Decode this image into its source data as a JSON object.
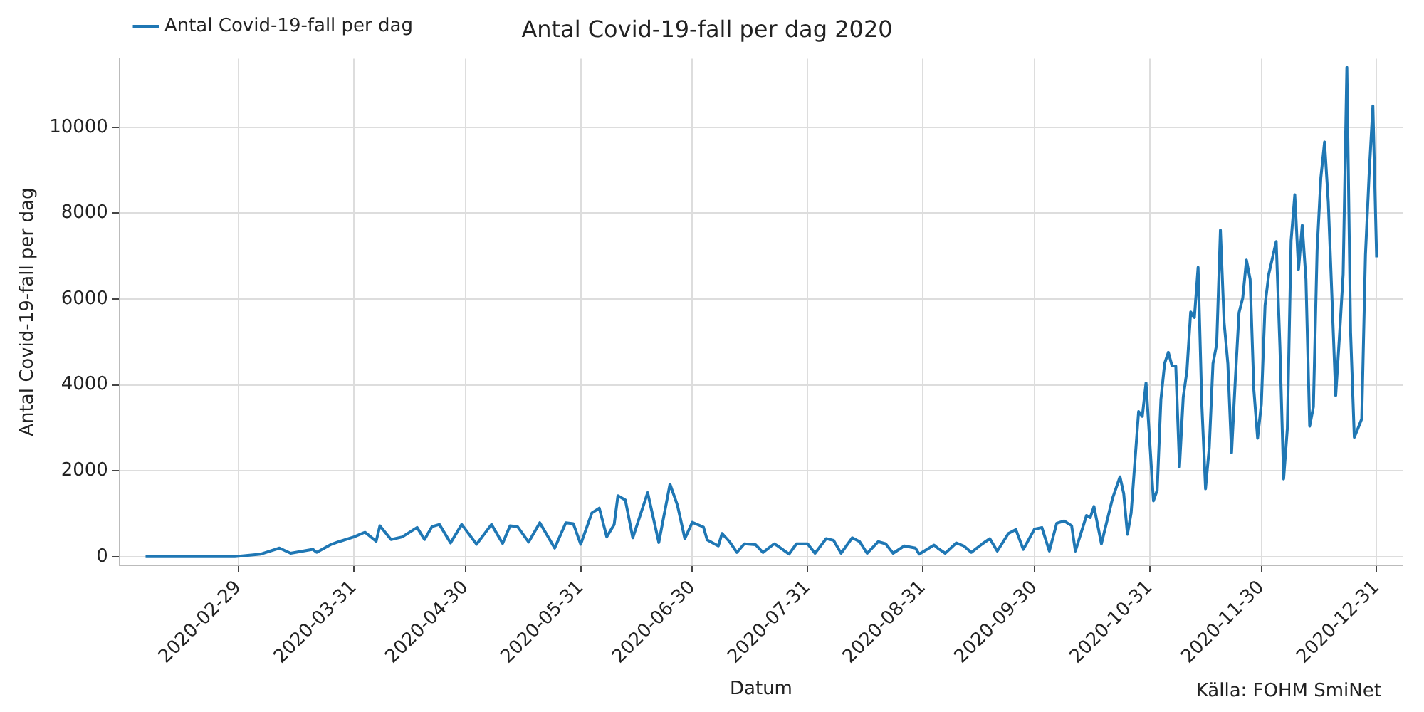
{
  "chart_data": {
    "type": "line",
    "title": "Antal Covid-19-fall per dag 2020",
    "xlabel": "Datum",
    "ylabel": "Antal Covid-19-fall per dag",
    "annotations": [
      "Källa: FOHM SmiNet"
    ],
    "x": [
      "2020-02-04",
      "2020-02-28",
      "2020-03-06",
      "2020-03-11",
      "2020-03-14",
      "2020-03-20",
      "2020-03-21",
      "2020-03-25",
      "2020-03-27",
      "2020-03-31",
      "2020-04-03",
      "2020-04-06",
      "2020-04-07",
      "2020-04-10",
      "2020-04-13",
      "2020-04-17",
      "2020-04-19",
      "2020-04-21",
      "2020-04-23",
      "2020-04-26",
      "2020-04-29",
      "2020-05-03",
      "2020-05-07",
      "2020-05-10",
      "2020-05-12",
      "2020-05-14",
      "2020-05-17",
      "2020-05-20",
      "2020-05-24",
      "2020-05-27",
      "2020-05-29",
      "2020-05-31",
      "2020-06-03",
      "2020-06-05",
      "2020-06-07",
      "2020-06-09",
      "2020-06-10",
      "2020-06-12",
      "2020-06-14",
      "2020-06-18",
      "2020-06-21",
      "2020-06-24",
      "2020-06-26",
      "2020-06-28",
      "2020-06-30",
      "2020-07-03",
      "2020-07-04",
      "2020-07-07",
      "2020-07-08",
      "2020-07-10",
      "2020-07-12",
      "2020-07-14",
      "2020-07-17",
      "2020-07-19",
      "2020-07-22",
      "2020-07-23",
      "2020-07-26",
      "2020-07-28",
      "2020-07-31",
      "2020-08-02",
      "2020-08-05",
      "2020-08-07",
      "2020-08-09",
      "2020-08-12",
      "2020-08-14",
      "2020-08-16",
      "2020-08-19",
      "2020-08-21",
      "2020-08-23",
      "2020-08-26",
      "2020-08-29",
      "2020-08-30",
      "2020-09-03",
      "2020-09-04",
      "2020-09-06",
      "2020-09-09",
      "2020-09-11",
      "2020-09-13",
      "2020-09-16",
      "2020-09-18",
      "2020-09-20",
      "2020-09-23",
      "2020-09-25",
      "2020-09-27",
      "2020-09-30",
      "2020-10-02",
      "2020-10-04",
      "2020-10-06",
      "2020-10-08",
      "2020-10-10",
      "2020-10-11",
      "2020-10-14",
      "2020-10-15",
      "2020-10-16",
      "2020-10-18",
      "2020-10-21",
      "2020-10-23",
      "2020-10-24",
      "2020-10-25",
      "2020-10-26",
      "2020-10-28",
      "2020-10-29",
      "2020-10-30",
      "2020-11-01",
      "2020-11-02",
      "2020-11-03",
      "2020-11-04",
      "2020-11-05",
      "2020-11-06",
      "2020-11-07",
      "2020-11-08",
      "2020-11-09",
      "2020-11-10",
      "2020-11-11",
      "2020-11-12",
      "2020-11-13",
      "2020-11-14",
      "2020-11-15",
      "2020-11-16",
      "2020-11-17",
      "2020-11-18",
      "2020-11-19",
      "2020-11-20",
      "2020-11-21",
      "2020-11-22",
      "2020-11-23",
      "2020-11-24",
      "2020-11-25",
      "2020-11-26",
      "2020-11-27",
      "2020-11-28",
      "2020-11-29",
      "2020-11-30",
      "2020-12-01",
      "2020-12-02",
      "2020-12-04",
      "2020-12-05",
      "2020-12-06",
      "2020-12-07",
      "2020-12-08",
      "2020-12-09",
      "2020-12-10",
      "2020-12-11",
      "2020-12-12",
      "2020-12-13",
      "2020-12-14",
      "2020-12-15",
      "2020-12-16",
      "2020-12-17",
      "2020-12-18",
      "2020-12-19",
      "2020-12-20",
      "2020-12-21",
      "2020-12-22",
      "2020-12-23",
      "2020-12-24",
      "2020-12-25",
      "2020-12-26",
      "2020-12-27",
      "2020-12-28",
      "2020-12-29",
      "2020-12-30",
      "2020-12-31"
    ],
    "series": [
      {
        "name": "Antal Covid-19-fall per dag",
        "color": "#1f77b4",
        "values": [
          0,
          0,
          60,
          200,
          80,
          170,
          100,
          290,
          350,
          460,
          570,
          360,
          720,
          400,
          460,
          680,
          400,
          700,
          750,
          320,
          750,
          290,
          750,
          310,
          720,
          700,
          340,
          790,
          200,
          790,
          770,
          290,
          1020,
          1130,
          460,
          750,
          1420,
          1320,
          440,
          1490,
          330,
          1690,
          1200,
          420,
          800,
          690,
          390,
          250,
          540,
          350,
          100,
          300,
          280,
          100,
          300,
          250,
          60,
          300,
          300,
          80,
          420,
          380,
          80,
          440,
          350,
          80,
          350,
          300,
          80,
          250,
          200,
          60,
          270,
          200,
          80,
          320,
          250,
          100,
          300,
          420,
          130,
          540,
          630,
          170,
          640,
          680,
          130,
          780,
          830,
          720,
          130,
          960,
          910,
          1170,
          300,
          1360,
          1860,
          1470,
          520,
          1020,
          3380,
          3270,
          4050,
          1300,
          1550,
          3660,
          4500,
          4760,
          4440,
          4440,
          2090,
          3710,
          4330,
          5700,
          5570,
          6740,
          3550,
          1580,
          2540,
          4500,
          4950,
          7610,
          5450,
          4500,
          2420,
          4110,
          5680,
          6020,
          6910,
          6460,
          3880,
          2760,
          3550,
          5850,
          6580,
          7340,
          4890,
          1810,
          2990,
          7360,
          8430,
          6690,
          7720,
          6460,
          3040,
          3490,
          7140,
          8820,
          9660,
          8260,
          6020,
          3750,
          5120,
          6580,
          11400,
          5230,
          2780,
          2990,
          3210,
          7030,
          8930,
          10500,
          6970
        ]
      }
    ],
    "xlim": [
      "2020-01-28",
      "2021-01-07"
    ],
    "xticks": [
      "2020-02-29",
      "2020-03-31",
      "2020-04-30",
      "2020-05-31",
      "2020-06-30",
      "2020-07-31",
      "2020-08-31",
      "2020-09-30",
      "2020-10-31",
      "2020-11-30",
      "2020-12-31"
    ],
    "ylim": [
      -200,
      11600
    ],
    "yticks": [
      0,
      2000,
      4000,
      6000,
      8000,
      10000
    ],
    "grid": true,
    "legend": "top left",
    "marker": "none",
    "line_style": "solid"
  }
}
